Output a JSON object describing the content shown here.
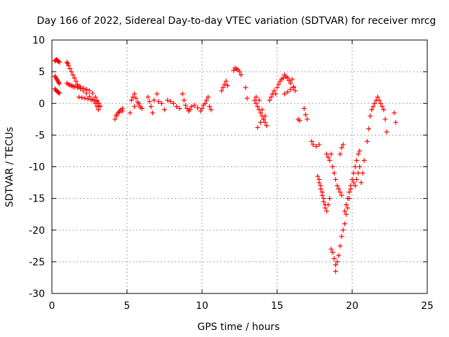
{
  "chart_data": {
    "type": "scatter",
    "title": "Day 166 of 2022, Sidereal Day-to-day VTEC variation (SDTVAR) for receiver mrcg",
    "xlabel": "GPS time / hours",
    "ylabel": "SDTVAR / TECUs",
    "xlim": [
      0,
      25
    ],
    "ylim": [
      -30,
      10
    ],
    "xticks": [
      0,
      5,
      10,
      15,
      20,
      25
    ],
    "yticks": [
      -30,
      -25,
      -20,
      -15,
      -10,
      -5,
      0,
      5,
      10
    ],
    "grid": true,
    "marker": "plus",
    "color": "#ff0000",
    "series": [
      {
        "x": [
          0.2,
          0.25,
          0.3,
          0.35,
          0.4,
          0.45,
          0.5,
          0.2,
          0.25,
          0.3,
          0.35,
          0.4,
          0.45,
          0.5,
          0.2,
          0.25,
          0.3,
          0.35,
          0.4,
          0.45,
          0.5,
          1.0,
          1.05,
          1.1,
          1.2,
          1.3,
          1.4,
          1.5,
          1.6,
          1.7,
          1.8,
          1.0,
          1.1,
          1.2,
          1.3,
          1.4,
          1.5,
          1.7,
          1.9,
          2.1,
          2.3,
          2.5,
          2.7,
          2.9,
          3.0,
          3.1,
          1.8,
          2.0,
          2.2,
          2.4,
          2.6,
          2.8,
          3.0,
          3.1,
          3.2,
          1.7,
          1.9,
          2.1,
          2.3,
          2.5,
          2.7,
          2.9,
          3.0,
          3.1,
          3.2,
          4.2,
          4.3,
          4.4,
          4.5,
          4.6,
          4.7,
          4.3,
          4.5,
          4.7,
          5.3,
          5.4,
          5.5,
          5.6,
          5.7,
          5.8,
          5.9,
          6.0,
          5.2,
          5.5,
          5.8,
          6.4,
          6.5,
          6.6,
          6.7,
          6.8,
          7.0,
          7.1,
          7.3,
          7.5,
          7.7,
          7.9,
          8.1,
          8.3,
          8.5,
          8.7,
          8.8,
          8.9,
          9.0,
          9.1,
          9.2,
          9.3,
          9.5,
          9.7,
          9.9,
          10.0,
          10.1,
          10.2,
          10.3,
          10.4,
          10.5,
          10.6,
          11.3,
          11.4,
          11.5,
          11.6,
          11.7,
          12.1,
          12.2,
          12.3,
          12.4,
          12.5,
          12.6,
          12.9,
          13.0,
          13.5,
          13.6,
          13.7,
          13.8,
          13.9,
          14.0,
          14.1,
          14.2,
          14.3,
          13.6,
          13.8,
          14.0,
          14.2,
          13.7,
          13.9,
          14.1,
          14.5,
          14.6,
          14.7,
          14.8,
          14.9,
          15.0,
          15.1,
          15.2,
          15.3,
          15.4,
          15.5,
          15.6,
          15.7,
          15.8,
          15.9,
          16.0,
          16.1,
          16.2,
          15.5,
          15.7,
          15.9,
          16.1,
          16.4,
          16.5,
          16.8,
          16.9,
          17.0,
          17.3,
          17.4,
          17.6,
          17.8,
          17.8,
          17.9,
          18.0,
          18.1,
          18.2,
          18.3,
          18.4,
          18.5,
          18.6,
          18.7,
          18.8,
          18.9,
          19.0,
          19.1,
          19.2,
          19.3,
          17.7,
          17.8,
          17.9,
          18.0,
          18.1,
          18.2,
          18.3,
          18.4,
          18.5,
          18.6,
          18.7,
          18.8,
          18.9,
          18.9,
          19.0,
          19.1,
          19.2,
          19.3,
          19.4,
          19.5,
          19.6,
          19.7,
          19.8,
          19.9,
          20.0,
          20.1,
          20.2,
          20.3,
          20.4,
          20.5,
          19.2,
          19.3,
          19.4,
          19.5,
          19.6,
          19.7,
          19.8,
          19.9,
          20.0,
          20.1,
          20.2,
          20.3,
          20.4,
          20.5,
          20.6,
          20.7,
          20.8,
          21.0,
          21.1,
          21.2,
          21.3,
          21.4,
          21.5,
          21.6,
          21.7,
          21.8,
          21.9,
          22.0,
          22.1,
          22.2,
          22.3,
          22.8,
          22.9
        ],
        "y": [
          6.7,
          6.8,
          6.9,
          6.8,
          6.7,
          6.6,
          6.5,
          4.3,
          4.1,
          3.9,
          3.7,
          3.5,
          3.3,
          3.1,
          2.3,
          2.1,
          2.0,
          1.9,
          1.8,
          1.7,
          1.6,
          6.5,
          6.3,
          6.0,
          5.5,
          5.0,
          4.5,
          4.0,
          3.5,
          3.0,
          2.6,
          3.2,
          3.0,
          2.9,
          2.8,
          2.7,
          2.6,
          2.5,
          2.3,
          2.0,
          1.6,
          1.1,
          0.6,
          0.0,
          -0.5,
          -1.0,
          1.0,
          0.9,
          0.8,
          0.7,
          0.6,
          0.5,
          0.3,
          0.0,
          -0.4,
          2.8,
          2.6,
          2.4,
          2.2,
          2.0,
          1.6,
          1.0,
          0.5,
          0.0,
          -0.5,
          -2.5,
          -2.0,
          -1.5,
          -1.2,
          -1.0,
          -0.8,
          -1.8,
          -1.4,
          -1.2,
          0.5,
          1.0,
          1.5,
          0.8,
          0.2,
          -0.3,
          -0.6,
          -0.8,
          -1.5,
          -0.5,
          0.0,
          1.0,
          0.3,
          -0.5,
          -1.5,
          0.5,
          1.5,
          0.3,
          0.0,
          -1.0,
          0.5,
          0.3,
          0.0,
          -0.5,
          -0.8,
          1.5,
          0.5,
          -0.3,
          -0.8,
          -1.2,
          -1.0,
          -0.5,
          -0.3,
          -0.7,
          -1.2,
          -0.8,
          -0.3,
          0.0,
          0.5,
          1.0,
          -0.5,
          -1.0,
          2.0,
          2.5,
          3.0,
          3.5,
          2.8,
          5.2,
          5.6,
          5.4,
          5.3,
          5.0,
          4.5,
          2.5,
          0.8,
          0.5,
          0.0,
          -0.5,
          -1.0,
          -1.5,
          -2.0,
          -2.5,
          -3.0,
          -3.5,
          1.0,
          0.5,
          -1.0,
          -2.0,
          -3.8,
          -3.0,
          -2.5,
          0.5,
          1.0,
          1.5,
          2.0,
          1.5,
          2.5,
          3.0,
          3.5,
          3.8,
          4.0,
          4.5,
          4.2,
          4.0,
          3.6,
          3.2,
          3.8,
          2.5,
          2.0,
          1.5,
          1.8,
          2.2,
          2.6,
          -2.5,
          -2.7,
          -0.8,
          -1.8,
          -2.5,
          -6.0,
          -6.5,
          -6.8,
          -6.5,
          -12.0,
          -13.0,
          -14.0,
          -15.0,
          -16.0,
          -8.0,
          -8.5,
          -9.0,
          -8.0,
          -10.0,
          -11.0,
          -12.0,
          -13.0,
          -13.5,
          -14.0,
          -14.5,
          -11.5,
          -12.5,
          -13.5,
          -14.5,
          -15.5,
          -16.5,
          -17.0,
          -16.0,
          -15.0,
          -23.0,
          -23.5,
          -24.5,
          -25.5,
          -26.5,
          -25.0,
          -24.0,
          -22.5,
          -21.0,
          -20.0,
          -19.0,
          -17.5,
          -16.5,
          -15.0,
          -13.5,
          -12.0,
          -11.0,
          -10.0,
          -9.0,
          -8.0,
          -7.5,
          -8.0,
          -7.0,
          -6.5,
          -17.0,
          -16.0,
          -15.0,
          -14.0,
          -13.0,
          -12.0,
          -12.5,
          -13.0,
          -12.0,
          -11.0,
          -10.0,
          -12.5,
          -11.0,
          -9.0,
          -6.0,
          -4.0,
          -2.0,
          -1.0,
          -0.5,
          0.0,
          0.5,
          1.0,
          0.5,
          0.0,
          -0.5,
          -1.0,
          -2.5,
          -4.5,
          -1.5,
          -3.0
        ]
      }
    ]
  }
}
